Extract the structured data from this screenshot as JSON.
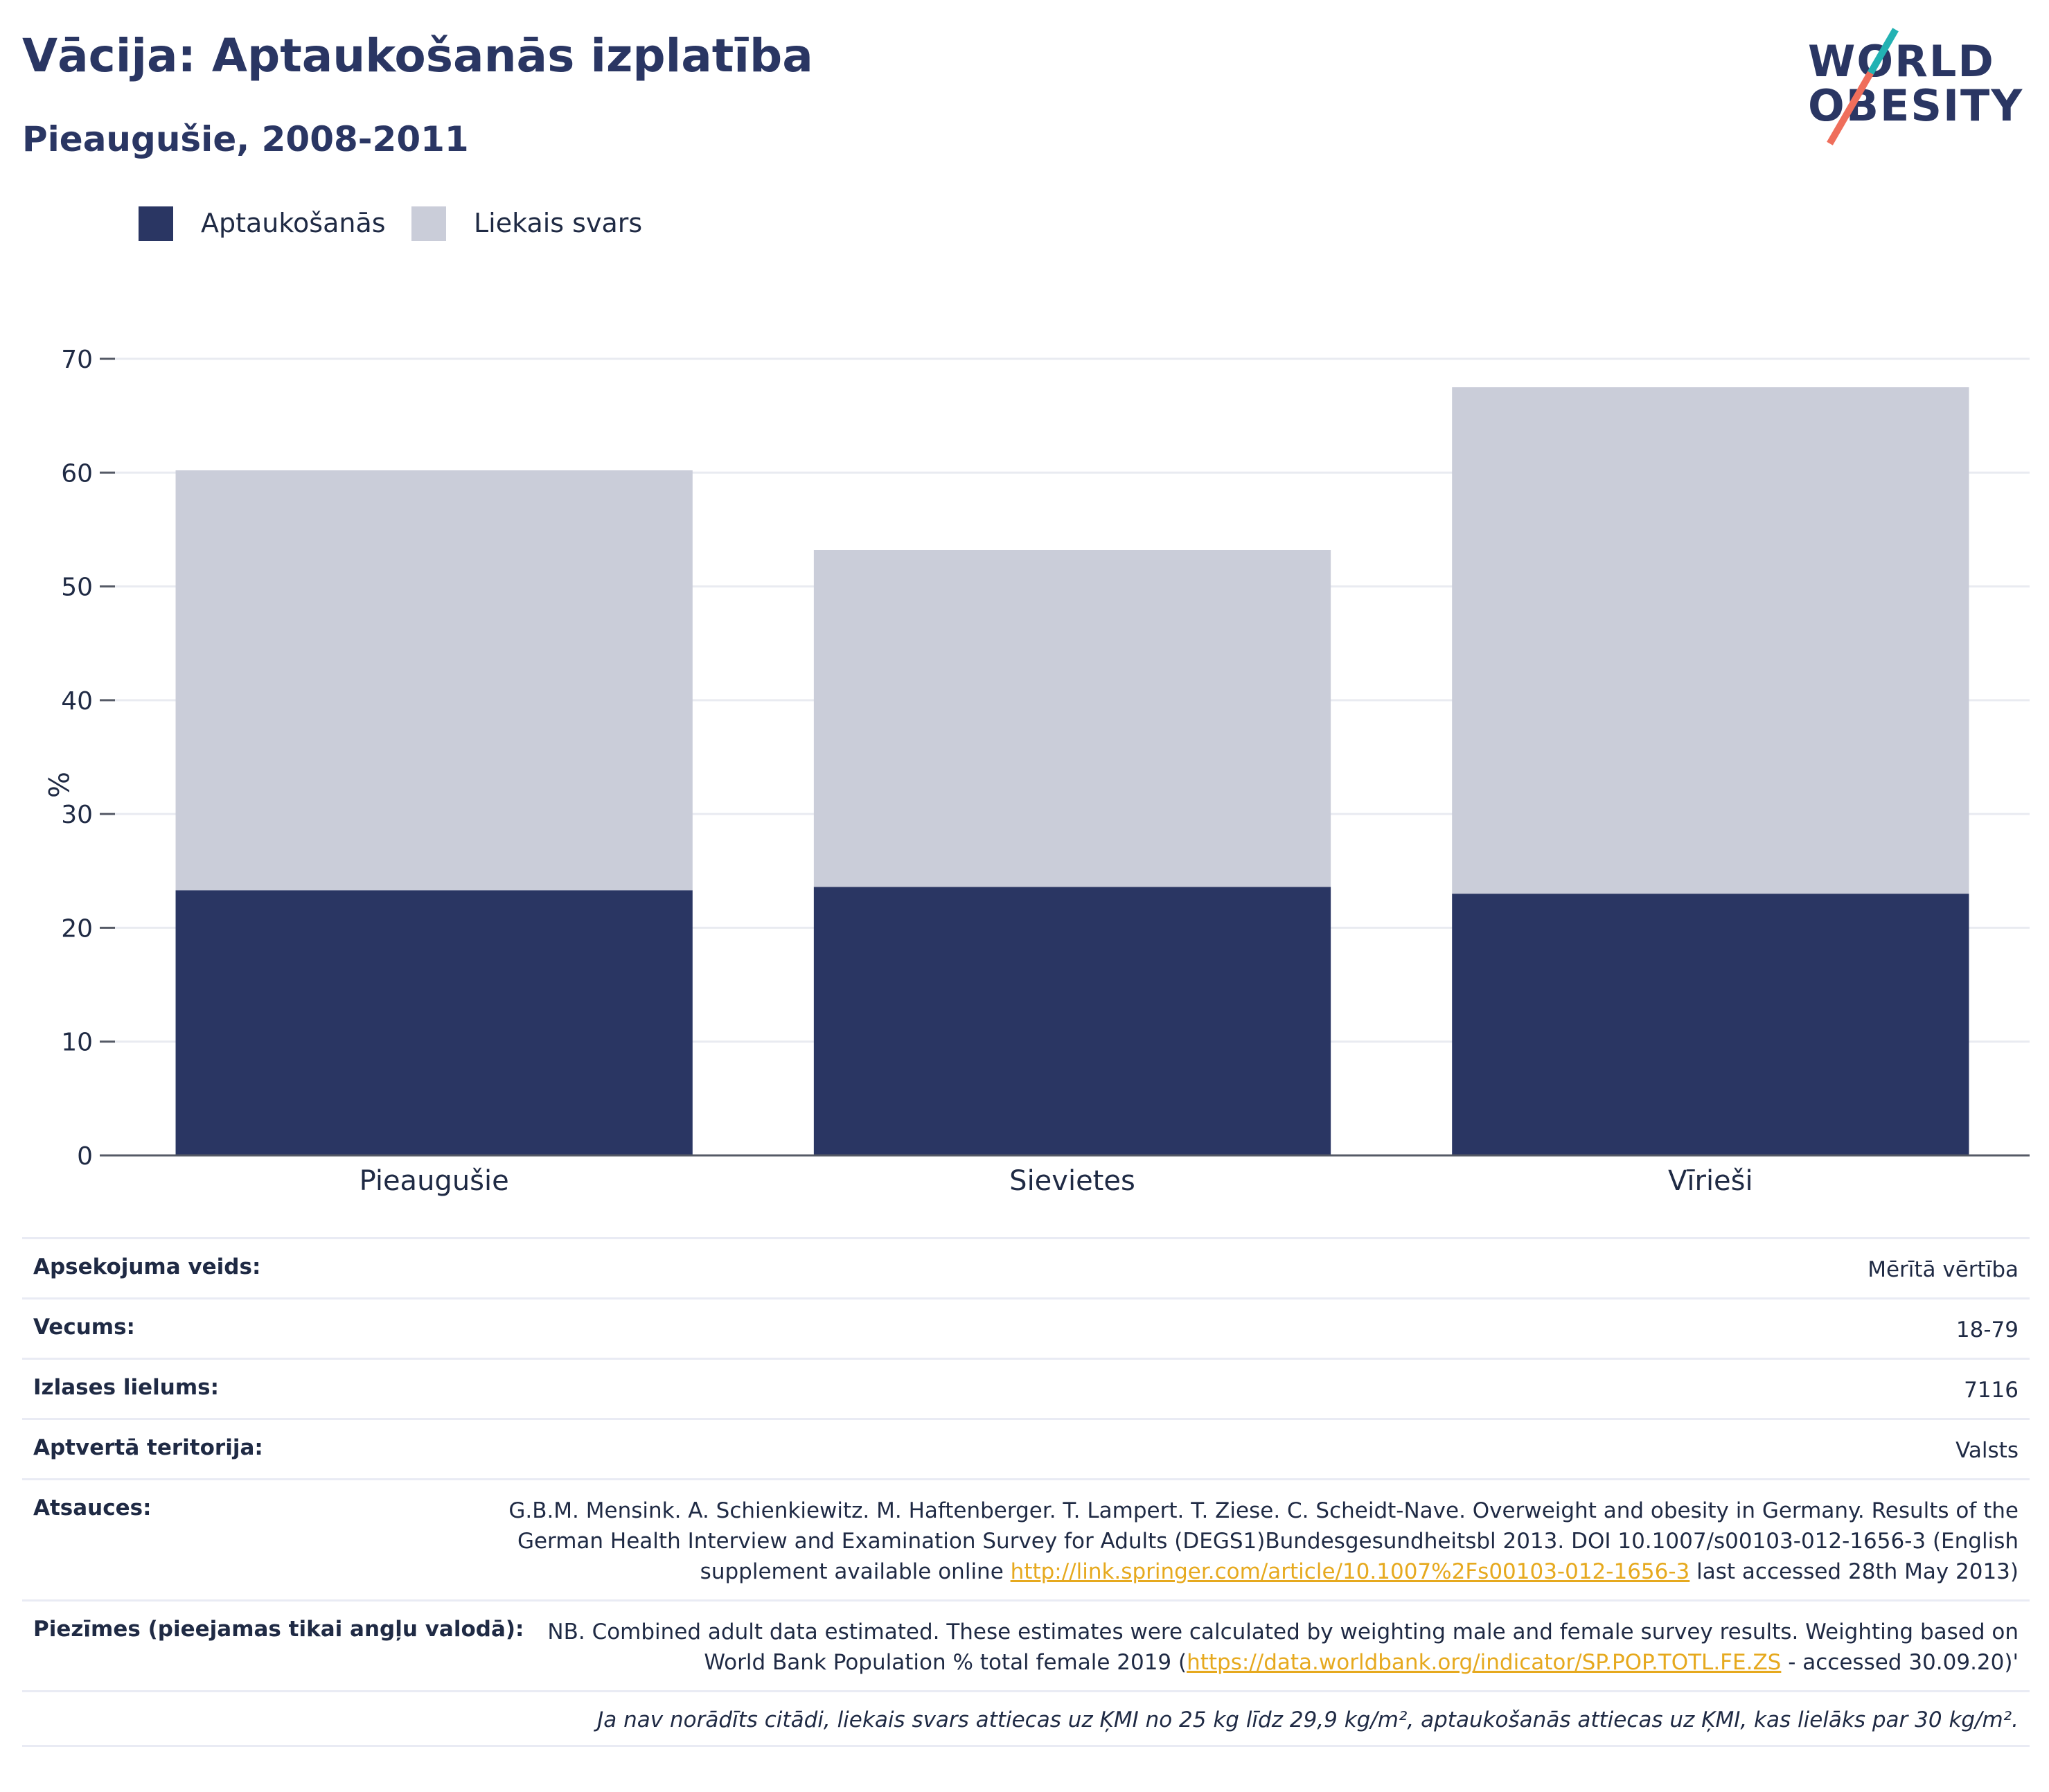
{
  "header": {
    "title": "Vācija: Aptaukošanās izplatība",
    "subtitle": "Pieaugušie, 2008-2011"
  },
  "logo": {
    "line1": "WORLD",
    "line2": "OBESITY",
    "colors": {
      "text": "#2a3663",
      "slash_top": "#23b2b3",
      "slash_bottom": "#ef6e5b"
    }
  },
  "colors": {
    "obesity": "#2a3663",
    "overweight": "#cacdd9",
    "grid": "#e9ebf1",
    "axis_text": "#1f2a44",
    "link": "#e6a91e"
  },
  "chart_data": {
    "type": "bar",
    "stacked": true,
    "title": "Vācija: Aptaukošanās izplatība",
    "subtitle": "Pieaugušie, 2008-2011",
    "xlabel": "",
    "ylabel": "%",
    "categories": [
      "Pieaugušie",
      "Sievietes",
      "Vīrieši"
    ],
    "series": [
      {
        "name": "Aptaukošanās",
        "values": [
          23.3,
          23.6,
          23.0
        ],
        "color": "#2a3663"
      },
      {
        "name": "Liekais svars",
        "values": [
          36.9,
          29.6,
          44.5
        ],
        "color": "#cacdd9"
      }
    ],
    "ylim": [
      0,
      70
    ],
    "yticks": [
      0,
      10,
      20,
      30,
      40,
      50,
      60,
      70
    ],
    "grid": true,
    "legend": "top-left"
  },
  "meta": {
    "rows": [
      {
        "label": "Apsekojuma veids:",
        "value": "Mērītā vērtība"
      },
      {
        "label": "Vecums:",
        "value": "18-79"
      },
      {
        "label": "Izlases lielums:",
        "value": "7116"
      },
      {
        "label": "Aptvertā teritorija:",
        "value": "Valsts"
      }
    ],
    "references": {
      "label": "Atsauces:",
      "text_before": "G.B.M. Mensink. A. Schienkiewitz. M. Haftenberger. T. Lampert. T. Ziese. C. Scheidt-Nave. Overweight and obesity in Germany. Results of the German Health Interview and Examination Survey for Adults (DEGS1)Bundesgesundheitsbl 2013. DOI 10.1007/s00103-012-1656-3 (English supplement available online ",
      "link": "http://link.springer.com/article/10.1007%2Fs00103-012-1656-3",
      "text_after": " last accessed 28th May 2013)"
    },
    "notes": {
      "label": "Piezīmes (pieejamas tikai angļu valodā):",
      "text_before": "NB. Combined adult data estimated. These estimates were calculated by weighting male and female survey results. Weighting based on World Bank Population % total female 2019 (",
      "link": "https://data.worldbank.org/indicator/SP.POP.TOTL.FE.ZS",
      "text_after": " - accessed 30.09.20)'"
    },
    "footnote": "Ja nav norādīts citādi, liekais svars attiecas uz ĶMI no 25 kg līdz 29,9 kg/m², aptaukošanās attiecas uz ĶMI, kas lielāks par 30 kg/m²."
  }
}
